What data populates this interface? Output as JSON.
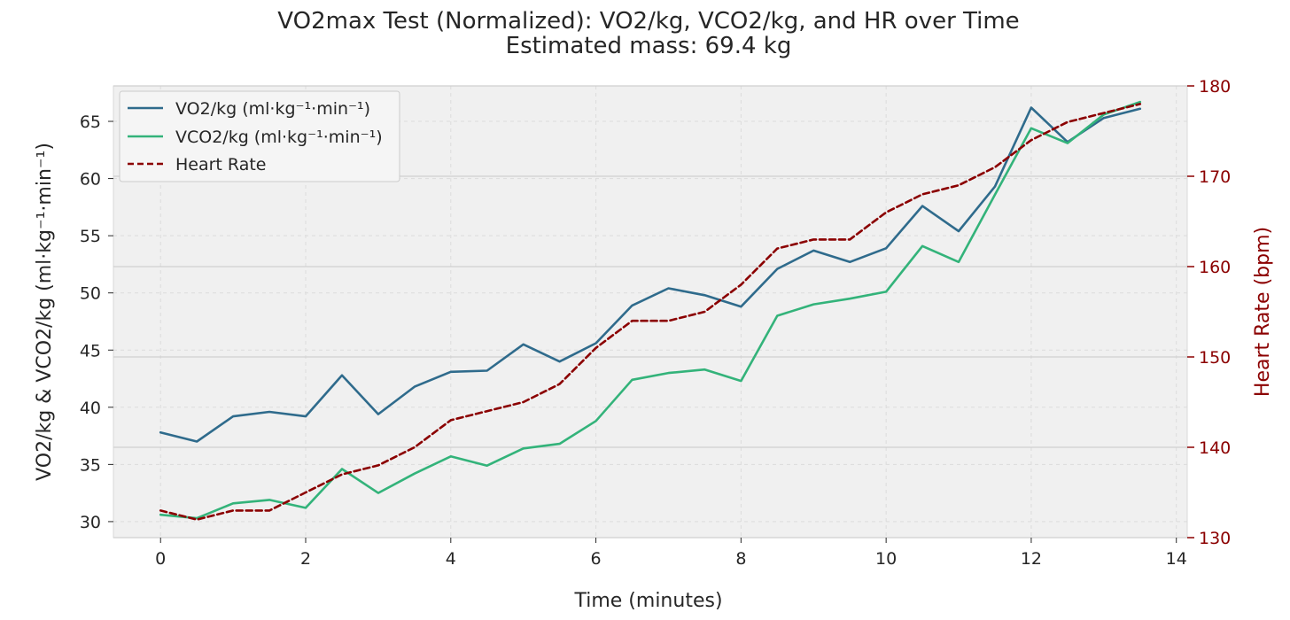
{
  "chart_data": {
    "type": "line",
    "title": "VO2max Test (Normalized): VO2/kg, VCO2/kg, and HR over Time",
    "subtitle": "Estimated mass: 69.4 kg",
    "xlabel": "Time (minutes)",
    "ylabel": "VO2/kg & VCO2/kg (ml·kg⁻¹·min⁻¹)",
    "y2label": "Heart Rate (bpm)",
    "xlim": [
      -0.65,
      14.15
    ],
    "ylim": [
      28.6,
      68.1
    ],
    "y2lim": [
      130,
      180
    ],
    "xticks": [
      0,
      2,
      4,
      6,
      8,
      10,
      12,
      14
    ],
    "yticks": [
      30,
      35,
      40,
      45,
      50,
      55,
      60,
      65
    ],
    "y2ticks": [
      130,
      140,
      150,
      160,
      170,
      180
    ],
    "grid": true,
    "legend_position": "top-left",
    "x": [
      0,
      0.5,
      1,
      1.5,
      2,
      2.5,
      3,
      3.5,
      4,
      4.5,
      5,
      5.5,
      6,
      6.5,
      7,
      7.5,
      8,
      8.5,
      9,
      9.5,
      10,
      10.5,
      11,
      11.5,
      12,
      12.5,
      13,
      13.5
    ],
    "series": [
      {
        "name": "VO2/kg (ml·kg⁻¹·min⁻¹)",
        "axis": "left",
        "color": "#2f6b8c",
        "style": "solid",
        "values": [
          37.8,
          37.0,
          39.2,
          39.6,
          39.2,
          42.8,
          39.4,
          41.8,
          43.1,
          43.2,
          45.5,
          44.0,
          45.6,
          48.9,
          50.4,
          49.8,
          48.8,
          52.1,
          53.7,
          52.7,
          53.9,
          57.6,
          55.4,
          59.3,
          66.2,
          63.2,
          65.3,
          66.1
        ]
      },
      {
        "name": "VCO2/kg (ml·kg⁻¹·min⁻¹)",
        "axis": "left",
        "color": "#33b37a",
        "style": "solid",
        "values": [
          30.6,
          30.3,
          31.6,
          31.9,
          31.2,
          34.6,
          32.5,
          34.2,
          35.7,
          34.9,
          36.4,
          36.8,
          38.8,
          42.4,
          43.0,
          43.3,
          42.3,
          48.0,
          49.0,
          49.5,
          50.1,
          54.1,
          52.7,
          58.6,
          64.4,
          63.1,
          65.6,
          66.7
        ]
      },
      {
        "name": "Heart Rate",
        "axis": "right",
        "color": "#8b0000",
        "style": "dashed",
        "values": [
          133,
          132,
          133,
          133,
          135,
          137,
          138,
          140,
          143,
          144,
          145,
          147,
          151,
          154,
          154,
          155,
          158,
          162,
          163,
          163,
          166,
          168,
          169,
          171,
          174,
          176,
          177,
          178
        ]
      }
    ]
  }
}
